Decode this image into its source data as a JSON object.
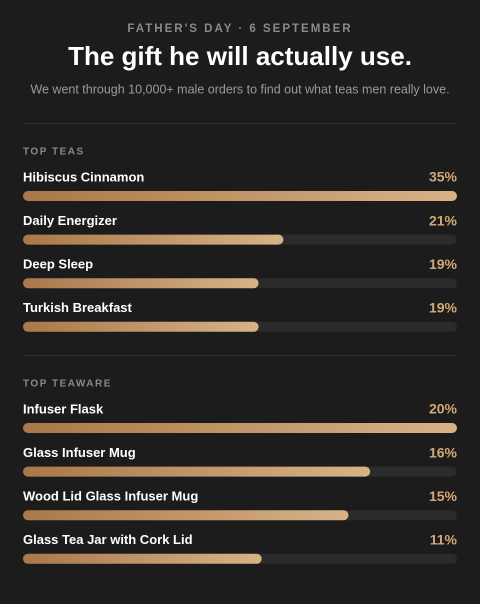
{
  "header": {
    "kicker": "FATHER'S DAY · 6 SEPTEMBER",
    "title": "The gift he will actually use.",
    "subtitle": "We went through 10,000+ male orders to find out what teas men really love."
  },
  "chart_data": [
    {
      "type": "bar",
      "orientation": "horizontal",
      "title": "TOP TEAS",
      "categories": [
        "Hibiscus Cinnamon",
        "Daily Energizer",
        "Deep Sleep",
        "Turkish Breakfast"
      ],
      "values": [
        35,
        21,
        19,
        19
      ],
      "value_labels": [
        "35%",
        "21%",
        "19%",
        "19%"
      ],
      "xlim": [
        0,
        35
      ],
      "colors": [
        "#a9784a",
        "#d7b387"
      ]
    },
    {
      "type": "bar",
      "orientation": "horizontal",
      "title": "TOP TEAWARE",
      "categories": [
        "Infuser Flask",
        "Glass Infuser Mug",
        "Wood Lid Glass Infuser Mug",
        "Glass Tea Jar with Cork Lid"
      ],
      "values": [
        20,
        16,
        15,
        11
      ],
      "value_labels": [
        "20%",
        "16%",
        "15%",
        "11%"
      ],
      "xlim": [
        0,
        20
      ],
      "colors": [
        "#a9784a",
        "#d7b387"
      ]
    }
  ]
}
